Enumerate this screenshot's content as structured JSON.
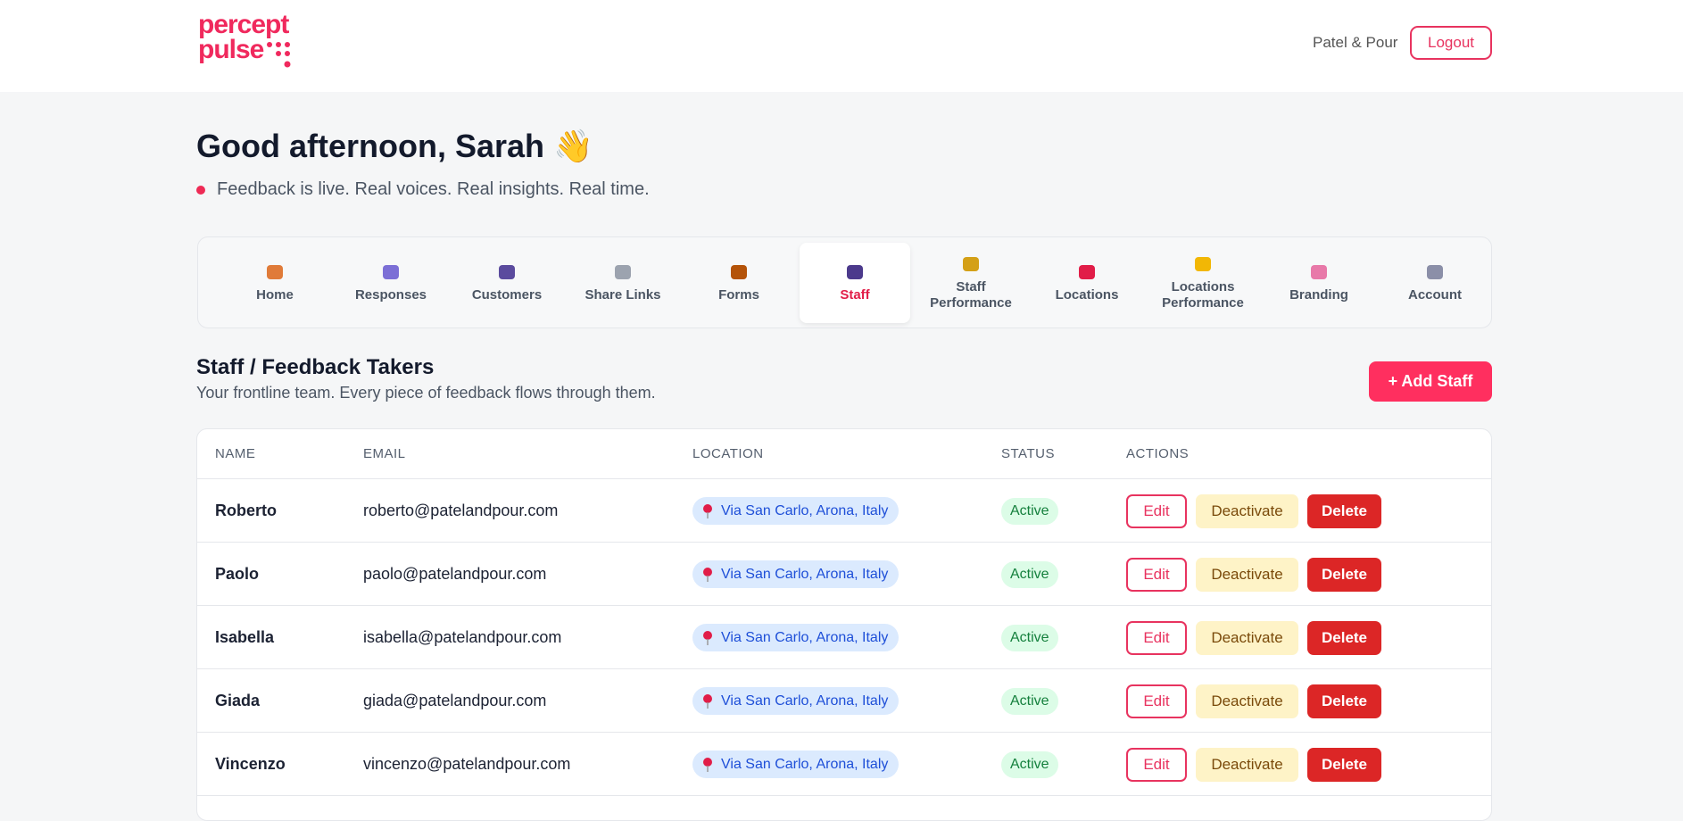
{
  "header": {
    "logo": [
      "percept",
      "pulse"
    ],
    "account": "Patel & Pour",
    "logout": "Logout"
  },
  "greeting": {
    "title": "Good afternoon, Sarah",
    "emoji": "👋",
    "tagline": "Feedback is live. Real voices. Real insights. Real time."
  },
  "nav": [
    "Home",
    "Responses",
    "Customers",
    "Share Links",
    "Forms",
    "Staff",
    "Staff Performance",
    "Locations",
    "Locations Performance",
    "Branding",
    "Account"
  ],
  "nav_active": 5,
  "section": {
    "title": "Staff / Feedback Takers",
    "subtitle": "Your frontline team. Every piece of feedback flows through them.",
    "add_button": "+ Add Staff"
  },
  "table": {
    "headers": [
      "NAME",
      "EMAIL",
      "LOCATION",
      "STATUS",
      "ACTIONS"
    ],
    "actions": [
      "Edit",
      "Deactivate",
      "Delete"
    ],
    "rows": [
      [
        "Roberto",
        "roberto@patelandpour.com",
        "Via San Carlo, Arona, Italy",
        "Active"
      ],
      [
        "Paolo",
        "paolo@patelandpour.com",
        "Via San Carlo, Arona, Italy",
        "Active"
      ],
      [
        "Isabella",
        "isabella@patelandpour.com",
        "Via San Carlo, Arona, Italy",
        "Active"
      ],
      [
        "Giada",
        "giada@patelandpour.com",
        "Via San Carlo, Arona, Italy",
        "Active"
      ],
      [
        "Vincenzo",
        "vincenzo@patelandpour.com",
        "Via San Carlo, Arona, Italy",
        "Active"
      ]
    ]
  }
}
